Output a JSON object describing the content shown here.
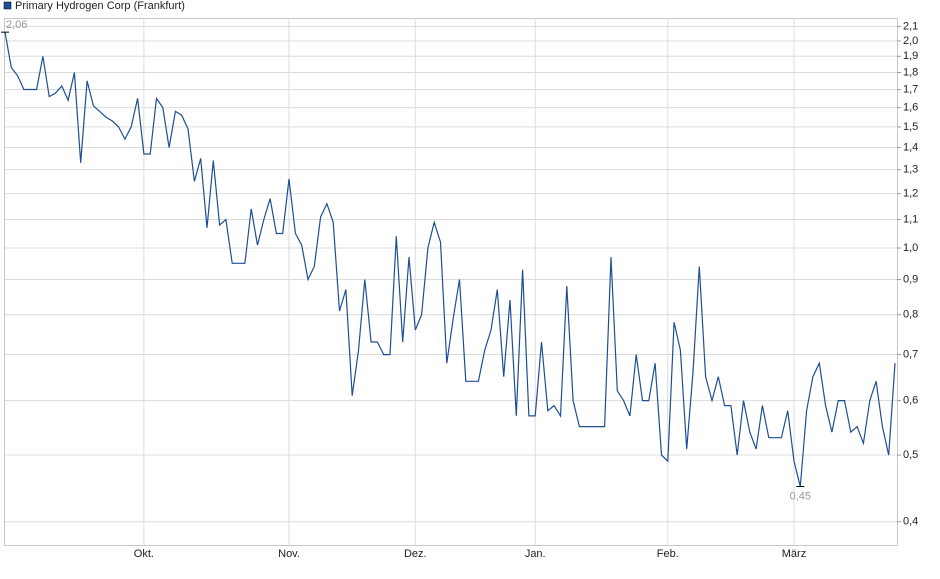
{
  "chart_data": {
    "type": "line",
    "log_scale": true,
    "grid": true,
    "legend": "top-left",
    "categories": [
      null,
      null,
      null,
      null,
      null,
      null,
      null,
      null,
      null,
      null,
      null,
      null,
      null,
      null,
      null,
      null,
      null,
      null,
      null,
      null,
      null,
      null,
      "Okt.",
      null,
      null,
      null,
      null,
      null,
      null,
      null,
      null,
      null,
      null,
      null,
      null,
      null,
      null,
      null,
      null,
      null,
      null,
      null,
      null,
      null,
      null,
      "Nov.",
      null,
      null,
      null,
      null,
      null,
      null,
      null,
      null,
      null,
      null,
      null,
      null,
      null,
      null,
      null,
      null,
      null,
      null,
      null,
      "Dez.",
      null,
      null,
      null,
      null,
      null,
      null,
      null,
      null,
      null,
      null,
      null,
      null,
      null,
      null,
      null,
      null,
      null,
      null,
      "Jan.",
      null,
      null,
      null,
      null,
      null,
      null,
      null,
      null,
      null,
      null,
      null,
      null,
      null,
      null,
      null,
      null,
      null,
      null,
      null,
      null,
      "Feb.",
      null,
      null,
      null,
      null,
      null,
      null,
      null,
      null,
      null,
      null,
      null,
      null,
      null,
      null,
      null,
      null,
      null,
      null,
      null,
      "März",
      null,
      null,
      null,
      null,
      null,
      null,
      null,
      null,
      null,
      null,
      null,
      null,
      null,
      null,
      null,
      null
    ],
    "series": [
      {
        "name": "Primary Hydrogen Corp (Frankfurt)",
        "color": "#1f4e96",
        "values": [
          2.06,
          1.83,
          1.78,
          1.7,
          1.7,
          1.7,
          1.9,
          1.66,
          1.68,
          1.72,
          1.64,
          1.8,
          1.33,
          1.75,
          1.61,
          1.58,
          1.55,
          1.53,
          1.5,
          1.44,
          1.5,
          1.65,
          1.37,
          1.37,
          1.65,
          1.6,
          1.4,
          1.58,
          1.56,
          1.49,
          1.25,
          1.35,
          1.07,
          1.34,
          1.08,
          1.1,
          0.95,
          0.95,
          0.95,
          1.14,
          1.01,
          1.1,
          1.18,
          1.05,
          1.05,
          1.26,
          1.05,
          1.01,
          0.9,
          0.94,
          1.11,
          1.16,
          1.09,
          0.81,
          0.87,
          0.61,
          0.71,
          0.9,
          0.73,
          0.73,
          0.7,
          0.7,
          1.04,
          0.73,
          0.97,
          0.76,
          0.8,
          1.0,
          1.09,
          1.02,
          0.68,
          0.79,
          0.9,
          0.64,
          0.64,
          0.64,
          0.71,
          0.76,
          0.87,
          0.65,
          0.84,
          0.57,
          0.93,
          0.57,
          0.57,
          0.73,
          0.58,
          0.59,
          0.57,
          0.88,
          0.6,
          0.55,
          0.55,
          0.55,
          0.55,
          0.55,
          0.97,
          0.62,
          0.6,
          0.57,
          0.7,
          0.6,
          0.6,
          0.68,
          0.5,
          0.49,
          0.78,
          0.71,
          0.51,
          0.66,
          0.94,
          0.65,
          0.6,
          0.65,
          0.59,
          0.59,
          0.5,
          0.6,
          0.54,
          0.51,
          0.59,
          0.53,
          0.53,
          0.53,
          0.58,
          0.49,
          0.45,
          0.58,
          0.65,
          0.68,
          0.59,
          0.54,
          0.6,
          0.6,
          0.54,
          0.55,
          0.52,
          0.6,
          0.64,
          0.55,
          0.5,
          0.68
        ],
        "value_labels": [
          "2,06",
          null,
          null,
          null,
          null,
          null,
          null,
          null,
          null,
          null,
          null,
          null,
          null,
          null,
          null,
          null,
          null,
          null,
          null,
          null,
          null,
          null,
          null,
          null,
          null,
          null,
          null,
          null,
          null,
          null,
          null,
          null,
          null,
          null,
          null,
          null,
          null,
          null,
          null,
          null,
          null,
          null,
          null,
          null,
          null,
          null,
          null,
          null,
          null,
          null,
          null,
          null,
          null,
          null,
          null,
          null,
          null,
          null,
          null,
          null,
          null,
          null,
          null,
          null,
          null,
          null,
          null,
          null,
          null,
          null,
          null,
          null,
          null,
          null,
          null,
          null,
          null,
          null,
          null,
          null,
          null,
          null,
          null,
          null,
          null,
          null,
          null,
          null,
          null,
          null,
          null,
          null,
          null,
          null,
          null,
          null,
          null,
          null,
          null,
          null,
          null,
          null,
          null,
          null,
          null,
          null,
          null,
          null,
          null,
          null,
          null,
          null,
          null,
          null,
          null,
          null,
          null,
          null,
          null,
          null,
          null,
          null,
          null,
          null,
          null,
          null,
          "0,45",
          null,
          null,
          null,
          null,
          null,
          null,
          null,
          null,
          null,
          null,
          null,
          null,
          null,
          null,
          null
        ]
      }
    ],
    "ylim": [
      0.37,
      2.16
    ],
    "yticks": [
      {
        "value": 2.1,
        "label": "2,1"
      },
      {
        "value": 2.0,
        "label": "2,0"
      },
      {
        "value": 1.9,
        "label": "1,9"
      },
      {
        "value": 1.8,
        "label": "1,8"
      },
      {
        "value": 1.7,
        "label": "1,7"
      },
      {
        "value": 1.6,
        "label": "1,6"
      },
      {
        "value": 1.5,
        "label": "1,5"
      },
      {
        "value": 1.4,
        "label": "1,4"
      },
      {
        "value": 1.3,
        "label": "1,3"
      },
      {
        "value": 1.2,
        "label": "1,2"
      },
      {
        "value": 1.1,
        "label": "1,1"
      },
      {
        "value": 1.0,
        "label": "1,0"
      },
      {
        "value": 0.9,
        "label": "0,9"
      },
      {
        "value": 0.8,
        "label": "0,8"
      },
      {
        "value": 0.7,
        "label": "0,7"
      },
      {
        "value": 0.6,
        "label": "0,6"
      },
      {
        "value": 0.5,
        "label": "0,5"
      },
      {
        "value": 0.4,
        "label": "0,4"
      }
    ]
  }
}
